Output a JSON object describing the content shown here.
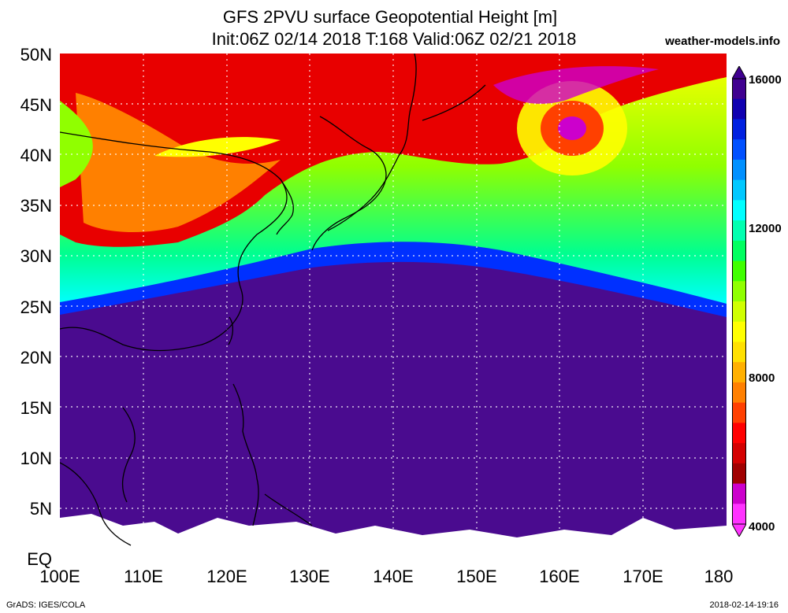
{
  "title": {
    "line1": "GFS 2PVU surface Geopotential Height [m]",
    "line2": "Init:06Z 02/14 2018 T:168 Valid:06Z 02/21 2018"
  },
  "brand": "weather-models.info",
  "axes": {
    "lat_labels": [
      "50N",
      "45N",
      "40N",
      "35N",
      "30N",
      "25N",
      "20N",
      "15N",
      "10N",
      "5N",
      "EQ"
    ],
    "lon_labels": [
      "100E",
      "110E",
      "120E",
      "130E",
      "140E",
      "150E",
      "160E",
      "170E",
      "180"
    ]
  },
  "colorbar": {
    "ticks": [
      "16000",
      "12000",
      "8000",
      "4000"
    ],
    "colors": [
      "#ff33ff",
      "#cc00cc",
      "#a00000",
      "#d40000",
      "#ff0000",
      "#ff4000",
      "#ff8000",
      "#ffb000",
      "#ffe000",
      "#ffff00",
      "#d0ff00",
      "#90ff00",
      "#40ff00",
      "#00ff60",
      "#00ffb0",
      "#00ffff",
      "#00c8ff",
      "#0090ff",
      "#0050ff",
      "#0020e0",
      "#1000b0",
      "#400090"
    ]
  },
  "footer": {
    "left": "GrADS: IGES/COLA",
    "right": "2018-02-14-19:16"
  },
  "field_colors": {
    "low": "#ff33ff",
    "red": "#e80000",
    "orange": "#ff8000",
    "yellow": "#ffff00",
    "green": "#40ff00",
    "cyan": "#00ffcc",
    "blue": "#0030ff",
    "purple": "#4a0b8f"
  }
}
